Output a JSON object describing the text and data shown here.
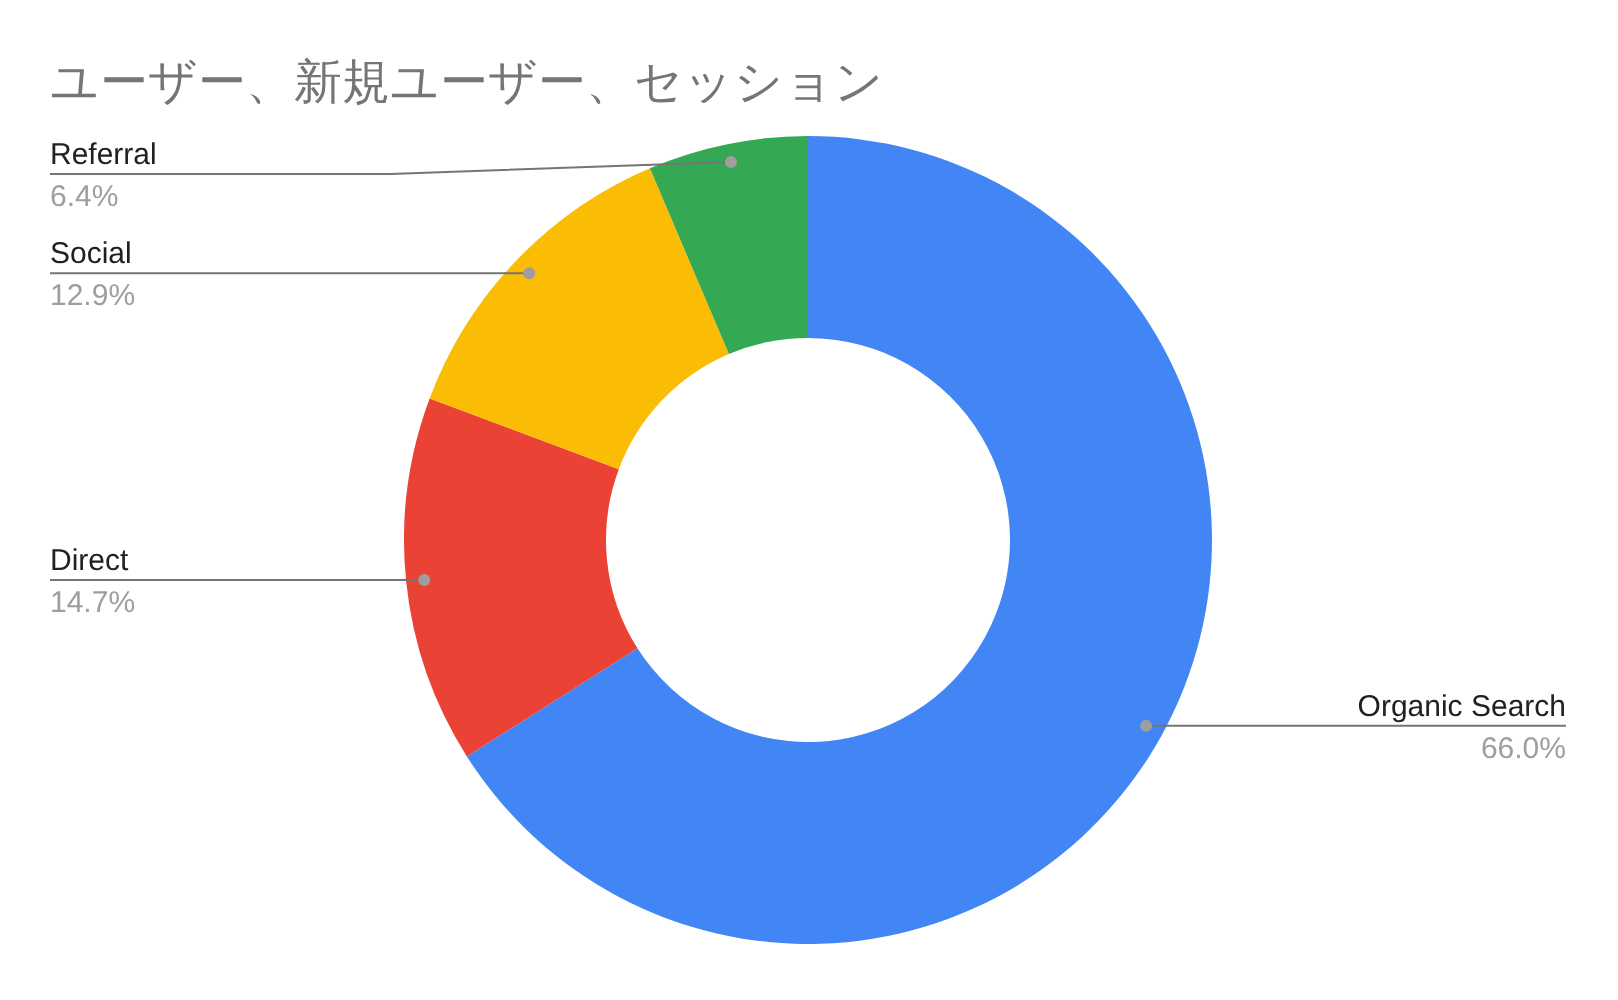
{
  "chart_data": {
    "type": "donut",
    "title": "ユーザー、新規ユーザー、セッション",
    "categories": [
      "Organic Search",
      "Direct",
      "Social",
      "Referral"
    ],
    "values": [
      66.0,
      14.7,
      12.9,
      6.4
    ],
    "colors": [
      "#4285f4",
      "#ea4335",
      "#fbbc04",
      "#34a853"
    ],
    "value_labels": [
      "66.0%",
      "14.7%",
      "12.9%",
      "6.4%"
    ],
    "legend": false
  }
}
